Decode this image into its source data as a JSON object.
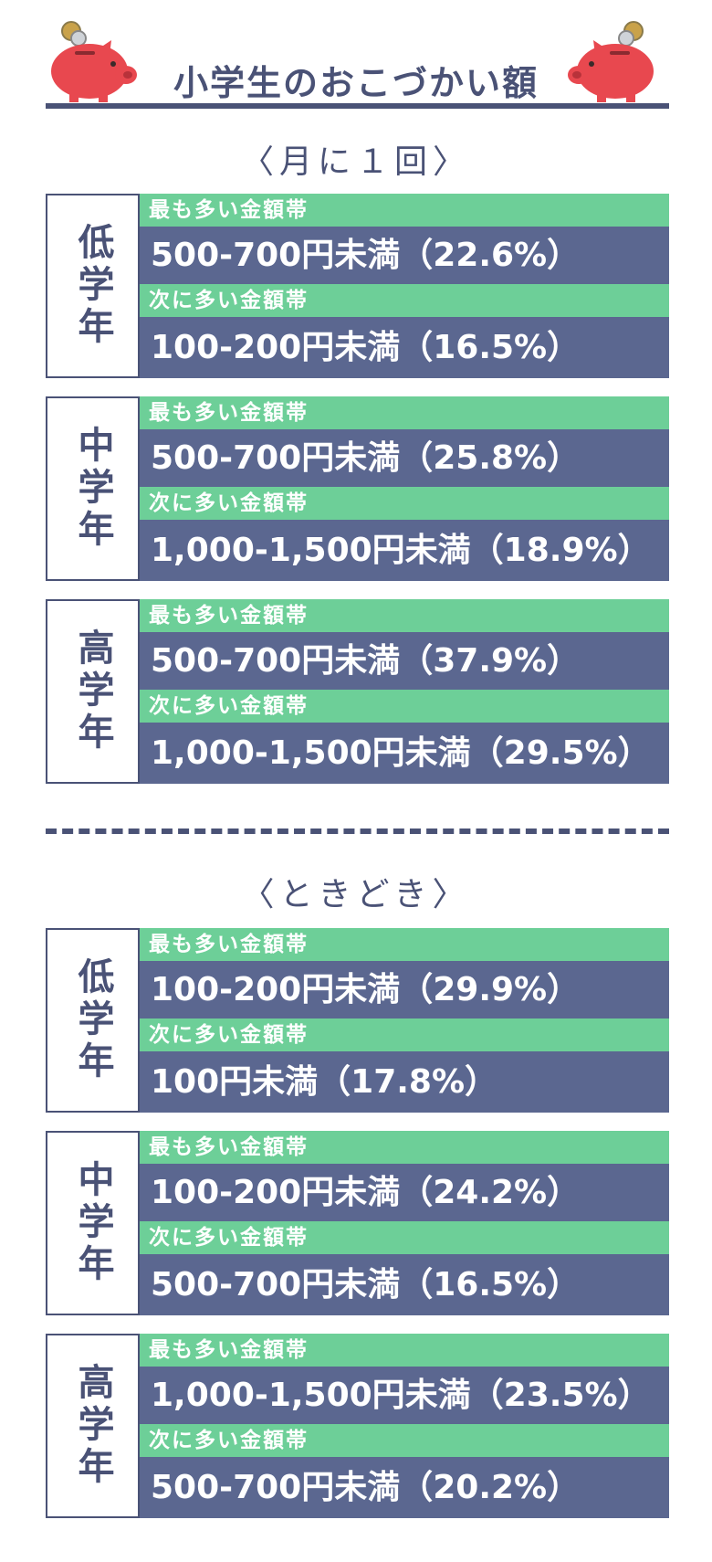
{
  "header": {
    "title": "小学生のおこづかい額",
    "left_icon": "piggy-bank-icon",
    "right_icon": "piggy-bank-icon"
  },
  "colors": {
    "navy": "#4a5276",
    "green_tag": "#6dcf98",
    "value_band": "#5b6790",
    "pig_red": "#e8484f"
  },
  "sections": [
    {
      "label": "〈月に１回〉",
      "groups": [
        {
          "grade": "低学年",
          "first_label": "最も多い金額帯",
          "first_value": "500-700円未満（22.6%）",
          "second_label": "次に多い金額帯",
          "second_value": "100-200円未満（16.5%）"
        },
        {
          "grade": "中学年",
          "first_label": "最も多い金額帯",
          "first_value": "500-700円未満（25.8%）",
          "second_label": "次に多い金額帯",
          "second_value": "1,000-1,500円未満（18.9%）"
        },
        {
          "grade": "高学年",
          "first_label": "最も多い金額帯",
          "first_value": "500-700円未満（37.9%）",
          "second_label": "次に多い金額帯",
          "second_value": "1,000-1,500円未満（29.5%）"
        }
      ]
    },
    {
      "label": "〈ときどき〉",
      "groups": [
        {
          "grade": "低学年",
          "first_label": "最も多い金額帯",
          "first_value": "100-200円未満（29.9%）",
          "second_label": "次に多い金額帯",
          "second_value": "100円未満（17.8%）"
        },
        {
          "grade": "中学年",
          "first_label": "最も多い金額帯",
          "first_value": "100-200円未満（24.2%）",
          "second_label": "次に多い金額帯",
          "second_value": "500-700円未満（16.5%）"
        },
        {
          "grade": "高学年",
          "first_label": "最も多い金額帯",
          "first_value": "1,000-1,500円未満（23.5%）",
          "second_label": "次に多い金額帯",
          "second_value": "500-700円未満（20.2%）"
        }
      ]
    }
  ]
}
